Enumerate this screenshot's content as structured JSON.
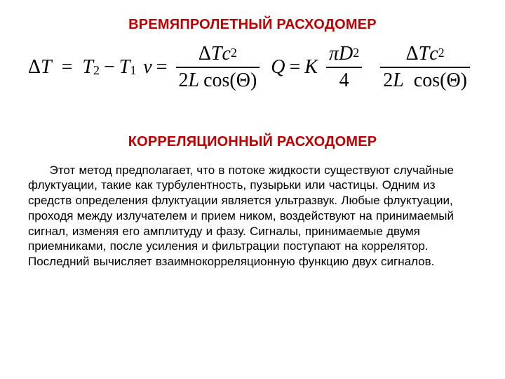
{
  "colors": {
    "heading": "#c00000",
    "text": "#000000",
    "bg": "#ffffff"
  },
  "heading1": "ВРЕМЯПРОЛЕТНЫЙ РАСХОДОМЕР",
  "heading2": "КОРРЕЛЯЦИОННЫЙ РАСХОДОМЕР",
  "paragraph": "Этот метод предполагает, что в потоке жидкости существуют случайные флуктуации, такие как турбулентность, пузырьки или частицы. Одним из средств определения флуктуации является ультразвук. Любые флуктуации, проходя между излучателем и прием ником, воздействуют на принимаемый сигнал, изменяя его амплитуду и фазу. Сигналы, принимаемые двумя приемниками, после усиления и фильтрации поступают на коррелятор. Последний вычисляет взаимнокорреляционную функцию двух сигналов.",
  "math": {
    "eq1": {
      "lhs_sym": "Δ",
      "lhs_var": "T",
      "eq": "=",
      "r1_var": "T",
      "r1_sub": "2",
      "minus": "−",
      "r2_var": "T",
      "r2_sub": "1"
    },
    "eq2": {
      "lhs": "v",
      "eq": "=",
      "num_d": "Δ",
      "num_t": "T",
      "num_c": "c",
      "num_csup": "2",
      "den_2": "2",
      "den_L": "L",
      "den_cos": "cos",
      "den_th": "(Θ)"
    },
    "eq3": {
      "lhs": "Q",
      "eq": "=",
      "K": "K",
      "f1_num_pi": "π",
      "f1_num_D": "D",
      "f1_num_sup": "2",
      "f1_den": "4",
      "f2_num_d": "Δ",
      "f2_num_t": "T",
      "f2_num_c": "c",
      "f2_num_csup": "2",
      "f2_den_2": "2",
      "f2_den_L": "L",
      "f2_den_cos": "cos",
      "f2_den_th": "(Θ)"
    }
  }
}
